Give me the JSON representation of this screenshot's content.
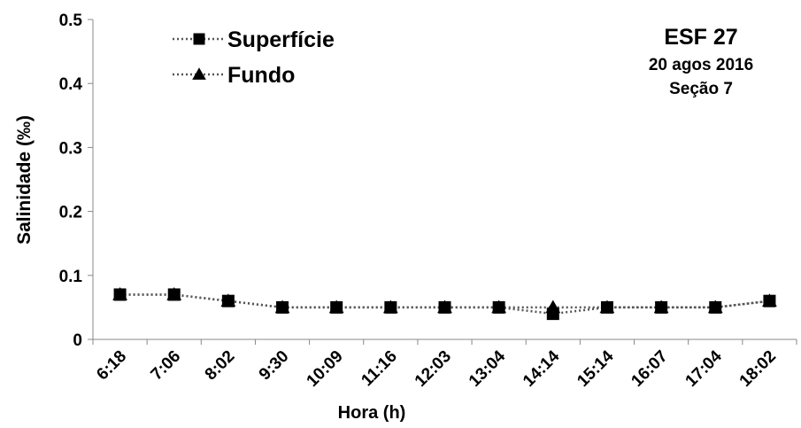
{
  "chart_data": {
    "type": "line",
    "x_label": "Hora (h)",
    "y_label": "Salinidade (‰)",
    "annotations": [
      "ESF 27",
      "20 agos 2016",
      "Seção 7"
    ],
    "categories": [
      "6:18",
      "7:06",
      "8:02",
      "9:30",
      "10:09",
      "11:16",
      "12:03",
      "13:04",
      "14:14",
      "15:14",
      "16:07",
      "17:04",
      "18:02"
    ],
    "series": [
      {
        "name": "Superfície",
        "color": "#000000",
        "marker": "square",
        "values": [
          0.07,
          0.07,
          0.06,
          0.05,
          0.05,
          0.05,
          0.05,
          0.05,
          0.04,
          0.05,
          0.05,
          0.05,
          0.06
        ]
      },
      {
        "name": "Fundo",
        "color": "#000000",
        "marker": "triangle",
        "values": [
          0.07,
          0.07,
          0.06,
          0.05,
          0.05,
          0.05,
          0.05,
          0.05,
          0.05,
          0.05,
          0.05,
          0.05,
          0.06
        ]
      }
    ],
    "ylim": [
      0,
      0.5
    ],
    "yticks": [
      0,
      0.1,
      0.2,
      0.3,
      0.4,
      0.5
    ],
    "grid": false,
    "legend": "top-left"
  }
}
